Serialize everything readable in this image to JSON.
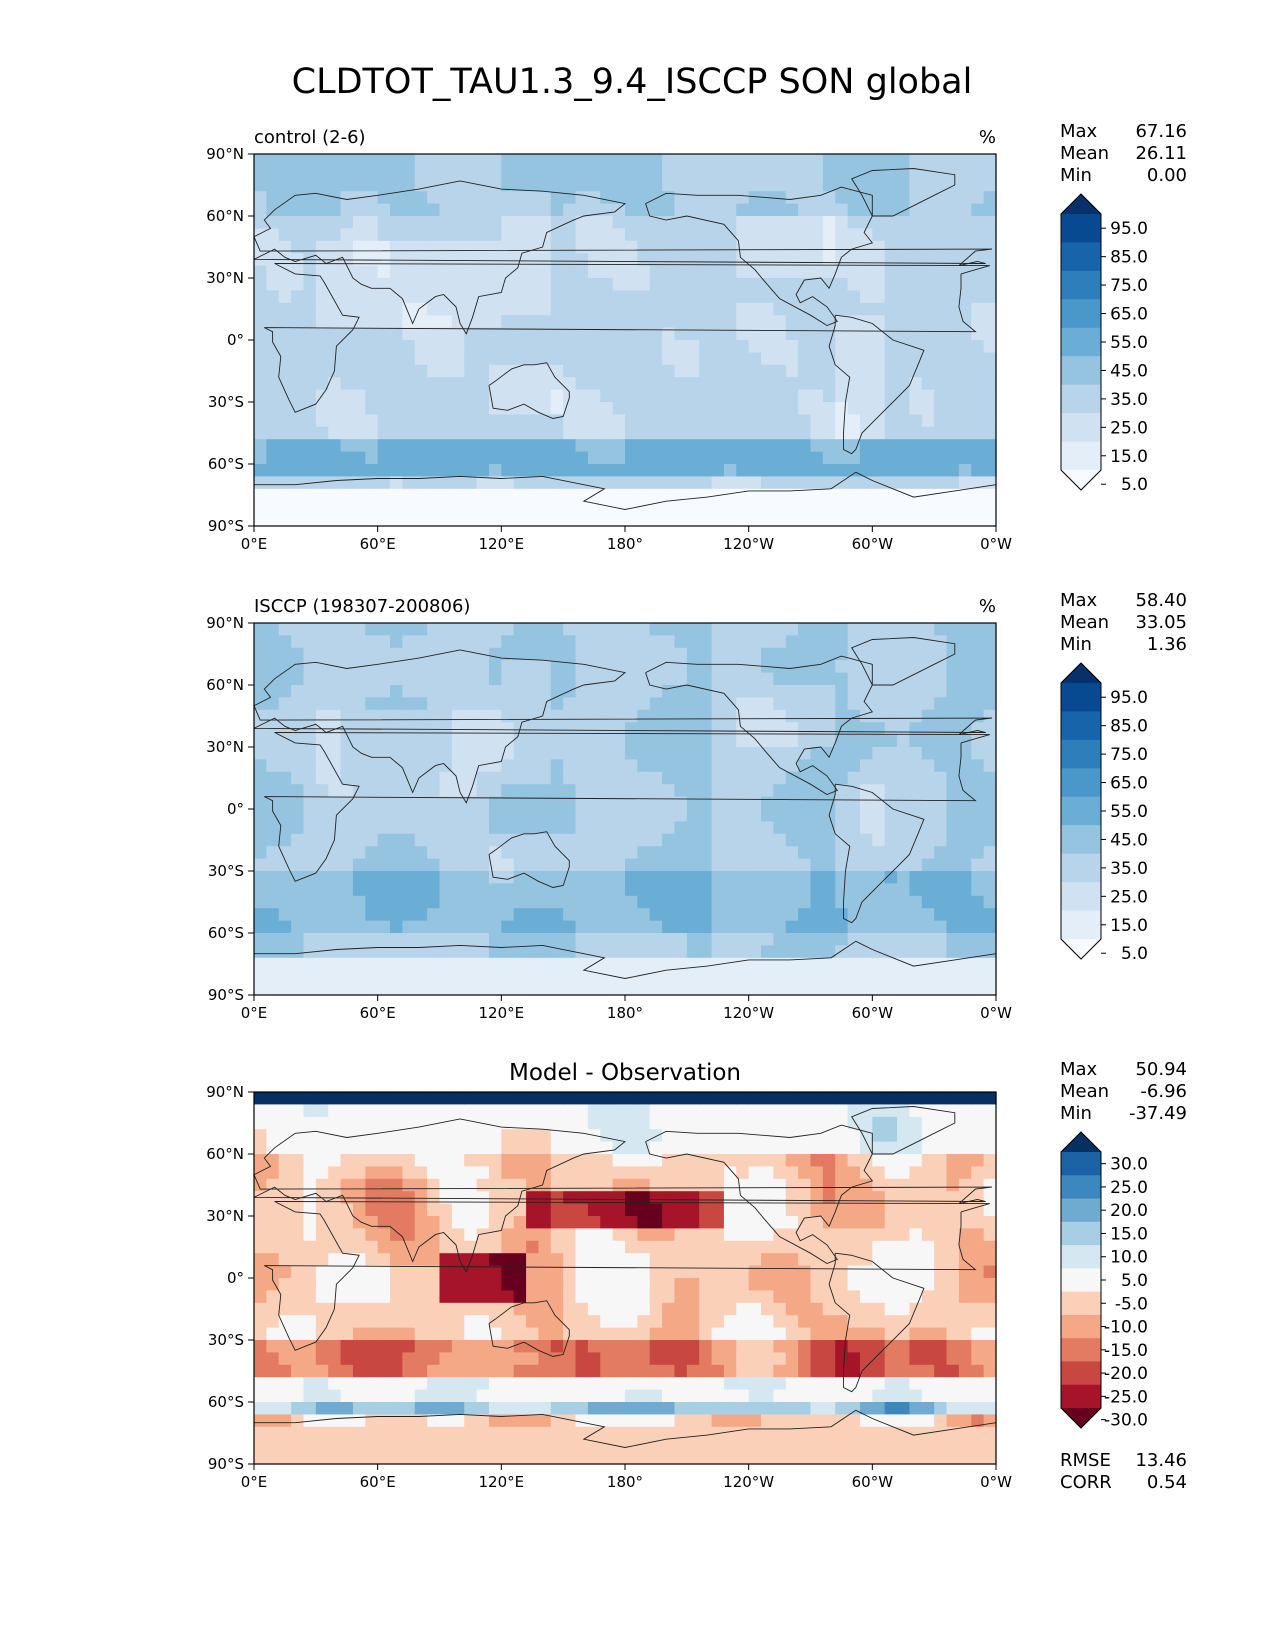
{
  "figure": {
    "title": "CLDTOT_TAU1.3_9.4_ISCCP SON global",
    "x_ticks": [
      "0°E",
      "60°E",
      "120°E",
      "180°",
      "120°W",
      "60°W",
      "0°W"
    ],
    "y_ticks": [
      "90°N",
      "60°N",
      "30°N",
      "0°",
      "30°S",
      "60°S",
      "90°S"
    ]
  },
  "chart_data": [
    {
      "type": "heatmap",
      "panel": "test",
      "left_title": "control (2-6)",
      "right_title": "%",
      "center_title": "",
      "stats": [
        {
          "label": "Max",
          "value": "67.16"
        },
        {
          "label": "Mean",
          "value": "26.11"
        },
        {
          "label": "Min",
          "value": "0.00"
        }
      ],
      "colorbar": {
        "ticks": [
          "95.0",
          "85.0",
          "75.0",
          "65.0",
          "55.0",
          "45.0",
          "35.0",
          "25.0",
          "15.0",
          "5.0"
        ],
        "colors": [
          "#f7fbff",
          "#e3eef9",
          "#d0e1f2",
          "#b7d4ea",
          "#94c4df",
          "#6aaed6",
          "#4a98c9",
          "#2e7ebc",
          "#1764ab",
          "#084a91",
          "#08306b"
        ]
      },
      "extra_stats": [],
      "xlim": [
        0,
        360
      ],
      "ylim": [
        -90,
        90
      ]
    },
    {
      "type": "heatmap",
      "panel": "reference",
      "left_title": "ISCCP (198307-200806)",
      "right_title": "%",
      "center_title": "",
      "stats": [
        {
          "label": "Max",
          "value": "58.40"
        },
        {
          "label": "Mean",
          "value": "33.05"
        },
        {
          "label": "Min",
          "value": "1.36"
        }
      ],
      "colorbar": {
        "ticks": [
          "95.0",
          "85.0",
          "75.0",
          "65.0",
          "55.0",
          "45.0",
          "35.0",
          "25.0",
          "15.0",
          "5.0"
        ],
        "colors": [
          "#f7fbff",
          "#e3eef9",
          "#d0e1f2",
          "#b7d4ea",
          "#94c4df",
          "#6aaed6",
          "#4a98c9",
          "#2e7ebc",
          "#1764ab",
          "#084a91",
          "#08306b"
        ]
      },
      "extra_stats": [],
      "xlim": [
        0,
        360
      ],
      "ylim": [
        -90,
        90
      ]
    },
    {
      "type": "heatmap",
      "panel": "difference",
      "left_title": "",
      "right_title": "",
      "center_title": "Model - Observation",
      "stats": [
        {
          "label": "Max",
          "value": "50.94"
        },
        {
          "label": "Mean",
          "value": "-6.96"
        },
        {
          "label": "Min",
          "value": "-37.49"
        }
      ],
      "colorbar": {
        "ticks": [
          "30.0",
          "25.0",
          "20.0",
          "15.0",
          "10.0",
          "5.0",
          "-5.0",
          "-10.0",
          "-15.0",
          "-20.0",
          "-25.0",
          "-30.0"
        ],
        "colors": [
          "#67001f",
          "#a51429",
          "#c94741",
          "#e27b62",
          "#f5a886",
          "#fbd0b9",
          "#f7f7f7",
          "#d5e7f1",
          "#a7cfe4",
          "#6fabd0",
          "#3b88be",
          "#1b63a5",
          "#053061"
        ]
      },
      "extra_stats": [
        {
          "label": "RMSE",
          "value": "13.46"
        },
        {
          "label": "CORR",
          "value": "0.54"
        }
      ],
      "xlim": [
        0,
        360
      ],
      "ylim": [
        -90,
        90
      ]
    }
  ]
}
